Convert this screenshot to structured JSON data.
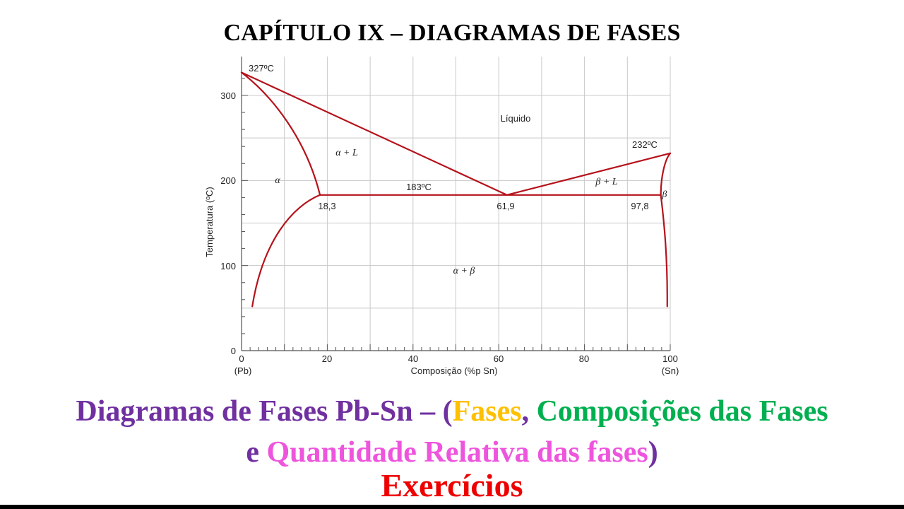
{
  "header": {
    "title": "CAPÍTULO IX –  DIAGRAMAS DE FASES"
  },
  "diagram": {
    "xlabel": "Composição (%p Sn)",
    "ylabel": "Temperatura (ºC)",
    "x_ticks": [
      "0",
      "20",
      "40",
      "60",
      "80",
      "100"
    ],
    "x_end_labels": {
      "left": "(Pb)",
      "right": "(Sn)"
    },
    "y_ticks": [
      "0",
      "100",
      "200",
      "300"
    ],
    "xlim": [
      0,
      100
    ],
    "ylim": [
      0,
      335
    ],
    "grid": true,
    "curve_color": "#b5121b",
    "labels": {
      "pb_melt": "327ºC",
      "sn_melt": "232ºC",
      "eutectic_temp": "183ºC",
      "liquid": "Líquido",
      "alpha": "α",
      "beta": "β",
      "alpha_l": "α + L",
      "beta_l": "β + L",
      "alpha_beta": "α + β",
      "comp_alpha": "18,3",
      "comp_eutectic": "61,9",
      "comp_beta": "97,8"
    },
    "key_points": {
      "pb_melting": [
        0,
        327
      ],
      "sn_melting": [
        100,
        232
      ],
      "eutectic": [
        61.9,
        183
      ],
      "alpha_max_solubility": [
        18.3,
        183
      ],
      "beta_max_solubility": [
        97.8,
        183
      ]
    }
  },
  "subtitle": {
    "part1": "Diagramas de Fases Pb-Sn – (",
    "fases": "Fases",
    "comma": ", ",
    "composicoes": "Composições das Fases",
    "line2_e": "e ",
    "quantidade": "Quantidade Relativa das fases",
    "close": ")"
  },
  "exercises": "Exercícios",
  "colors": {
    "purple": "#7030a0",
    "yellow": "#ffc000",
    "green": "#00b050",
    "pink": "#ee55dd",
    "red": "#ee0000"
  }
}
